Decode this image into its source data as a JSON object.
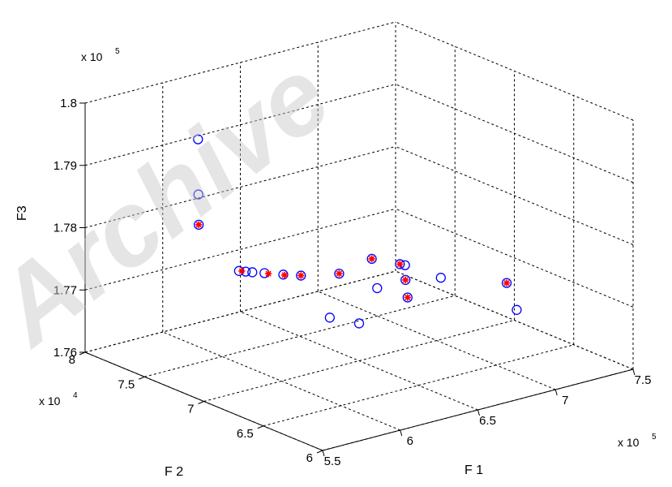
{
  "watermark": "Archive",
  "chart_data": {
    "type": "scatter",
    "projection": "3d",
    "axes": {
      "x": {
        "label": "F 1",
        "exponent_text": "x 10",
        "exponent_power": "5",
        "range": [
          5.5,
          7.5
        ],
        "ticks": [
          "5.5",
          "6",
          "6.5",
          "7",
          "7.5"
        ]
      },
      "y": {
        "label": "F 2",
        "exponent_text": "x 10",
        "exponent_power": "4",
        "range": [
          6,
          8
        ],
        "ticks": [
          "6",
          "6.5",
          "7",
          "7.5",
          "8"
        ]
      },
      "z": {
        "label": "F3",
        "exponent_text": "x 10",
        "exponent_power": "5",
        "range": [
          1.76,
          1.8
        ],
        "ticks": [
          "1.76",
          "1.77",
          "1.78",
          "1.79",
          "1.8"
        ]
      }
    },
    "grid": true,
    "series": [
      {
        "marker": "circle",
        "color": "#0000ff",
        "points": [
          {
            "x": 5.6,
            "y": 7.18,
            "z": 1.8
          },
          {
            "x": 5.61,
            "y": 7.19,
            "z": 1.791
          },
          {
            "x": 5.62,
            "y": 7.2,
            "z": 1.786
          },
          {
            "x": 6.17,
            "y": 7.58,
            "z": 1.772
          },
          {
            "x": 6.19,
            "y": 7.55,
            "z": 1.772
          },
          {
            "x": 6.21,
            "y": 7.52,
            "z": 1.772
          },
          {
            "x": 6.25,
            "y": 7.47,
            "z": 1.772
          },
          {
            "x": 6.31,
            "y": 7.39,
            "z": 1.772
          },
          {
            "x": 6.37,
            "y": 7.32,
            "z": 1.772
          },
          {
            "x": 6.54,
            "y": 7.22,
            "z": 1.772
          },
          {
            "x": 6.75,
            "y": 7.22,
            "z": 1.773
          },
          {
            "x": 6.87,
            "y": 7.14,
            "z": 1.772
          },
          {
            "x": 6.88,
            "y": 7.11,
            "z": 1.772
          },
          {
            "x": 6.86,
            "y": 7.08,
            "z": 1.77
          },
          {
            "x": 6.82,
            "y": 7.01,
            "z": 1.768
          },
          {
            "x": 7.08,
            "y": 7.07,
            "z": 1.769
          },
          {
            "x": 7.29,
            "y": 6.79,
            "z": 1.769
          },
          {
            "x": 6.67,
            "y": 7.07,
            "z": 1.77
          },
          {
            "x": 6.38,
            "y": 7.09,
            "z": 1.767
          },
          {
            "x": 6.5,
            "y": 7.0,
            "z": 1.766
          },
          {
            "x": 7.37,
            "y": 6.81,
            "z": 1.764
          }
        ]
      },
      {
        "marker": "star",
        "color": "#ff0000",
        "points": [
          {
            "x": 5.62,
            "y": 7.2,
            "z": 1.786
          },
          {
            "x": 6.18,
            "y": 7.57,
            "z": 1.772
          },
          {
            "x": 6.26,
            "y": 7.45,
            "z": 1.772
          },
          {
            "x": 6.31,
            "y": 7.38,
            "z": 1.772
          },
          {
            "x": 6.37,
            "y": 7.32,
            "z": 1.772
          },
          {
            "x": 6.54,
            "y": 7.22,
            "z": 1.772
          },
          {
            "x": 6.75,
            "y": 7.22,
            "z": 1.773
          },
          {
            "x": 6.87,
            "y": 7.14,
            "z": 1.772
          },
          {
            "x": 6.86,
            "y": 7.08,
            "z": 1.77
          },
          {
            "x": 6.82,
            "y": 7.01,
            "z": 1.768
          },
          {
            "x": 7.29,
            "y": 6.79,
            "z": 1.769
          }
        ]
      }
    ]
  }
}
